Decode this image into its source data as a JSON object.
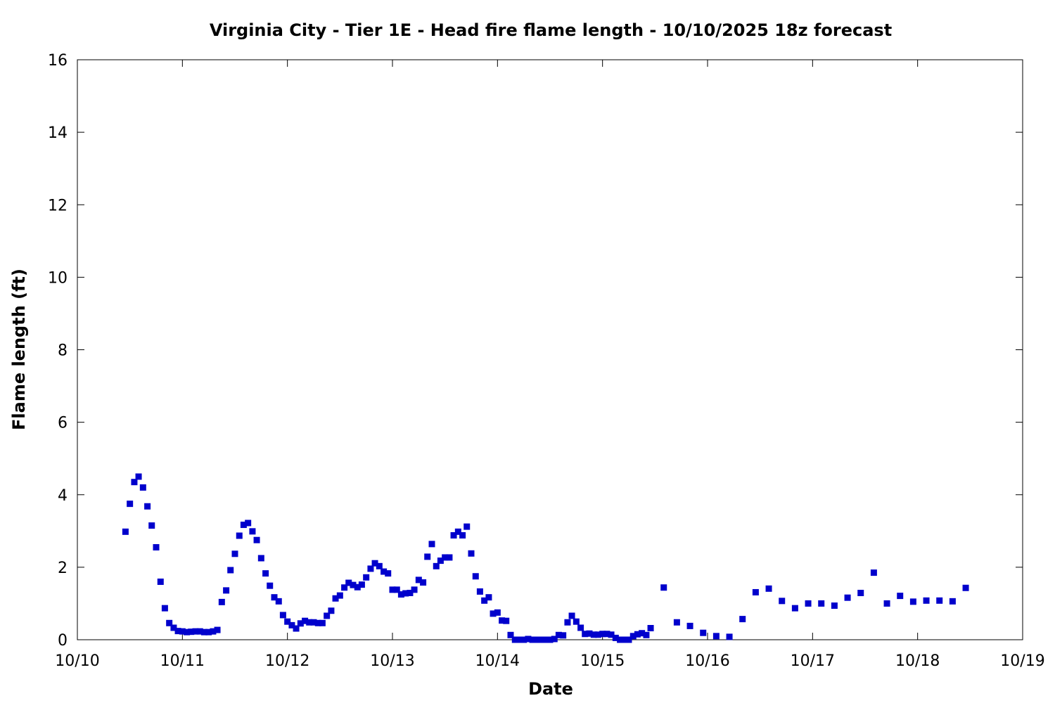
{
  "chart_data": {
    "type": "scatter",
    "title": "Virginia City - Tier 1E - Head fire flame length - 10/10/2025 18z forecast",
    "xlabel": "Date",
    "ylabel": "Flame length (ft)",
    "xlim": [
      0,
      9
    ],
    "ylim": [
      0,
      16
    ],
    "x_tick_labels": [
      "10/10",
      "10/11",
      "10/12",
      "10/13",
      "10/14",
      "10/15",
      "10/16",
      "10/17",
      "10/18",
      "10/19"
    ],
    "y_ticks": [
      0,
      2,
      4,
      6,
      8,
      10,
      12,
      14,
      16
    ],
    "x_axis_note": "x values are days after 10/10 00z",
    "grid": false,
    "legend": "none",
    "marker": "square",
    "color": "#0000cc",
    "points": [
      [
        0.458,
        2.98
      ],
      [
        0.5,
        3.75
      ],
      [
        0.542,
        4.35
      ],
      [
        0.583,
        4.5
      ],
      [
        0.625,
        4.2
      ],
      [
        0.667,
        3.68
      ],
      [
        0.708,
        3.15
      ],
      [
        0.75,
        2.55
      ],
      [
        0.792,
        1.6
      ],
      [
        0.833,
        0.87
      ],
      [
        0.875,
        0.46
      ],
      [
        0.917,
        0.33
      ],
      [
        0.958,
        0.24
      ],
      [
        1.0,
        0.23
      ],
      [
        1.042,
        0.21
      ],
      [
        1.083,
        0.22
      ],
      [
        1.125,
        0.23
      ],
      [
        1.167,
        0.23
      ],
      [
        1.208,
        0.21
      ],
      [
        1.25,
        0.21
      ],
      [
        1.292,
        0.23
      ],
      [
        1.333,
        0.27
      ],
      [
        1.375,
        1.04
      ],
      [
        1.417,
        1.36
      ],
      [
        1.458,
        1.92
      ],
      [
        1.5,
        2.37
      ],
      [
        1.542,
        2.87
      ],
      [
        1.583,
        3.17
      ],
      [
        1.625,
        3.22
      ],
      [
        1.667,
        2.99
      ],
      [
        1.708,
        2.75
      ],
      [
        1.75,
        2.25
      ],
      [
        1.792,
        1.83
      ],
      [
        1.833,
        1.49
      ],
      [
        1.875,
        1.17
      ],
      [
        1.917,
        1.06
      ],
      [
        1.958,
        0.68
      ],
      [
        2.0,
        0.5
      ],
      [
        2.042,
        0.4
      ],
      [
        2.083,
        0.31
      ],
      [
        2.125,
        0.45
      ],
      [
        2.167,
        0.52
      ],
      [
        2.208,
        0.48
      ],
      [
        2.25,
        0.48
      ],
      [
        2.292,
        0.46
      ],
      [
        2.333,
        0.46
      ],
      [
        2.375,
        0.66
      ],
      [
        2.417,
        0.8
      ],
      [
        2.458,
        1.14
      ],
      [
        2.5,
        1.22
      ],
      [
        2.542,
        1.44
      ],
      [
        2.583,
        1.57
      ],
      [
        2.625,
        1.51
      ],
      [
        2.667,
        1.45
      ],
      [
        2.708,
        1.52
      ],
      [
        2.75,
        1.72
      ],
      [
        2.792,
        1.96
      ],
      [
        2.833,
        2.11
      ],
      [
        2.875,
        2.03
      ],
      [
        2.917,
        1.88
      ],
      [
        2.958,
        1.83
      ],
      [
        3.0,
        1.38
      ],
      [
        3.042,
        1.38
      ],
      [
        3.083,
        1.25
      ],
      [
        3.125,
        1.28
      ],
      [
        3.167,
        1.29
      ],
      [
        3.208,
        1.38
      ],
      [
        3.25,
        1.65
      ],
      [
        3.292,
        1.58
      ],
      [
        3.333,
        2.29
      ],
      [
        3.375,
        2.64
      ],
      [
        3.417,
        2.03
      ],
      [
        3.458,
        2.18
      ],
      [
        3.5,
        2.27
      ],
      [
        3.542,
        2.27
      ],
      [
        3.583,
        2.88
      ],
      [
        3.625,
        2.98
      ],
      [
        3.667,
        2.88
      ],
      [
        3.708,
        3.12
      ],
      [
        3.75,
        2.38
      ],
      [
        3.792,
        1.75
      ],
      [
        3.833,
        1.33
      ],
      [
        3.875,
        1.08
      ],
      [
        3.917,
        1.17
      ],
      [
        3.958,
        0.72
      ],
      [
        4.0,
        0.75
      ],
      [
        4.042,
        0.53
      ],
      [
        4.083,
        0.52
      ],
      [
        4.125,
        0.13
      ],
      [
        4.167,
        0.0
      ],
      [
        4.208,
        0.0
      ],
      [
        4.25,
        0.0
      ],
      [
        4.292,
        0.02
      ],
      [
        4.333,
        0.0
      ],
      [
        4.375,
        0.0
      ],
      [
        4.417,
        0.0
      ],
      [
        4.458,
        0.0
      ],
      [
        4.5,
        0.0
      ],
      [
        4.542,
        0.02
      ],
      [
        4.583,
        0.13
      ],
      [
        4.625,
        0.12
      ],
      [
        4.667,
        0.48
      ],
      [
        4.708,
        0.66
      ],
      [
        4.75,
        0.5
      ],
      [
        4.792,
        0.33
      ],
      [
        4.833,
        0.16
      ],
      [
        4.875,
        0.17
      ],
      [
        4.917,
        0.14
      ],
      [
        4.958,
        0.14
      ],
      [
        5.0,
        0.16
      ],
      [
        5.042,
        0.16
      ],
      [
        5.083,
        0.14
      ],
      [
        5.125,
        0.05
      ],
      [
        5.167,
        0.0
      ],
      [
        5.208,
        0.0
      ],
      [
        5.25,
        0.0
      ],
      [
        5.292,
        0.1
      ],
      [
        5.333,
        0.15
      ],
      [
        5.375,
        0.18
      ],
      [
        5.417,
        0.13
      ],
      [
        5.458,
        0.32
      ],
      [
        5.583,
        1.44
      ],
      [
        5.708,
        0.48
      ],
      [
        5.833,
        0.38
      ],
      [
        5.958,
        0.19
      ],
      [
        6.083,
        0.1
      ],
      [
        6.208,
        0.08
      ],
      [
        6.333,
        0.57
      ],
      [
        6.458,
        1.31
      ],
      [
        6.583,
        1.41
      ],
      [
        6.708,
        1.07
      ],
      [
        6.833,
        0.87
      ],
      [
        6.958,
        1.0
      ],
      [
        7.083,
        1.0
      ],
      [
        7.208,
        0.94
      ],
      [
        7.333,
        1.16
      ],
      [
        7.458,
        1.29
      ],
      [
        7.583,
        1.85
      ],
      [
        7.708,
        1.0
      ],
      [
        7.833,
        1.21
      ],
      [
        7.958,
        1.05
      ],
      [
        8.083,
        1.08
      ],
      [
        8.208,
        1.08
      ],
      [
        8.333,
        1.06
      ],
      [
        8.458,
        1.43
      ]
    ]
  }
}
